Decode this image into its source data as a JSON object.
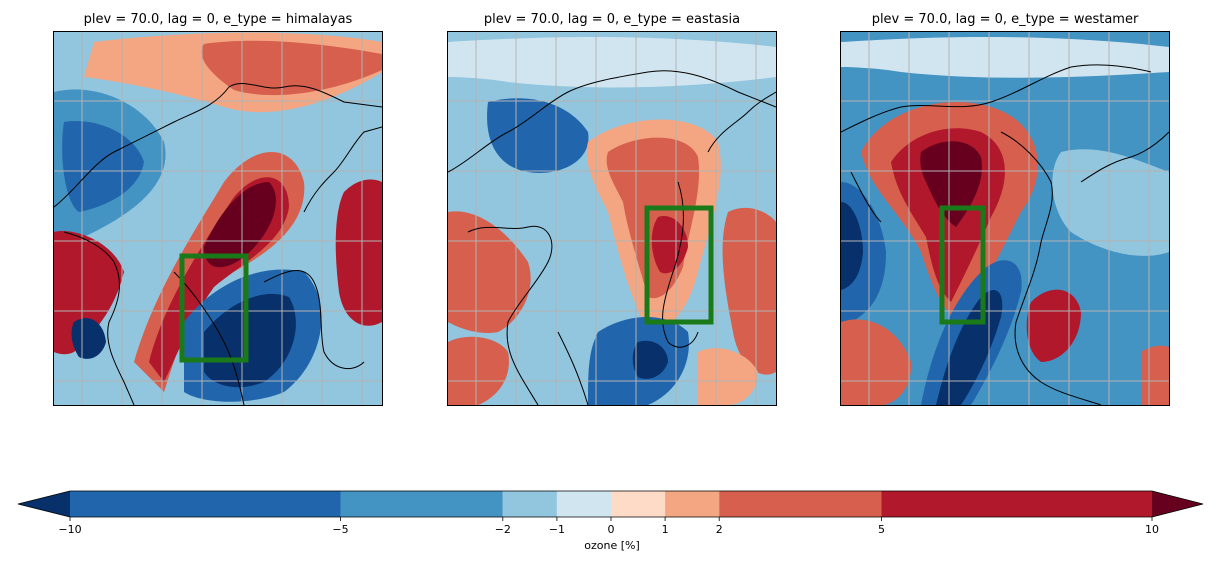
{
  "panels": [
    {
      "title": "plev = 70.0, lag = 0, e_type = himalayas",
      "region": "himalayas"
    },
    {
      "title": "plev = 70.0, lag = 0, e_type = eastasia",
      "region": "eastasia"
    },
    {
      "title": "plev = 70.0, lag = 0, e_type = westamer",
      "region": "westamer"
    }
  ],
  "colorbar": {
    "label": "ozone [%]",
    "tick_labels": [
      "−10",
      "−5",
      "−2",
      "−1",
      "0",
      "1",
      "2",
      "5",
      "10"
    ],
    "levels": [
      -10,
      -5,
      -2,
      -1,
      0,
      1,
      2,
      5,
      10
    ],
    "colors": [
      "#08306b",
      "#2166ac",
      "#4393c3",
      "#92c5de",
      "#d1e5f0",
      "#fddbc7",
      "#f4a582",
      "#d6604d",
      "#b2182b",
      "#67001f"
    ],
    "extend": "both"
  },
  "box_color": "#1a7a1a",
  "chart_data": {
    "type": "heatmap",
    "variable": "ozone [%]",
    "levels": [
      -10,
      -5,
      -2,
      -1,
      0,
      1,
      2,
      5,
      10
    ],
    "panels": [
      "himalayas",
      "eastasia",
      "westamer"
    ]
  }
}
